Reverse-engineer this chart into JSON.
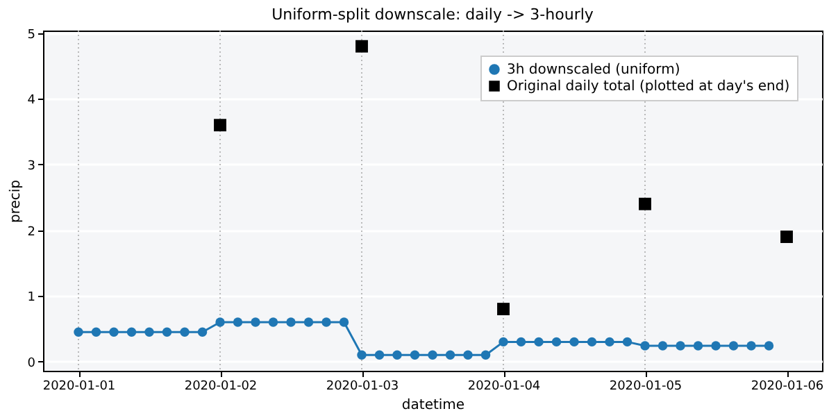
{
  "chart_data": {
    "type": "line",
    "title": "Uniform-split downscale: daily -> 3-hourly",
    "xlabel": "datetime",
    "ylabel": "precip",
    "xlim": [
      "2019-12-31T18:00",
      "2020-01-06T06:00"
    ],
    "ylim": [
      -0.14,
      5.04
    ],
    "xticks": [
      {
        "value": "2020-01-01",
        "label": "2020-01-01"
      },
      {
        "value": "2020-01-02",
        "label": "2020-01-02"
      },
      {
        "value": "2020-01-03",
        "label": "2020-01-03"
      },
      {
        "value": "2020-01-04",
        "label": "2020-01-04"
      },
      {
        "value": "2020-01-05",
        "label": "2020-01-05"
      },
      {
        "value": "2020-01-06",
        "label": "2020-01-06"
      }
    ],
    "yticks": [
      0,
      1,
      2,
      3,
      4,
      5
    ],
    "grid": "y",
    "legend": "top right",
    "ref_lines": [
      {
        "axis": "x",
        "value": "2020-01-01",
        "label": null,
        "color": "#aaaaaa",
        "line_style": "dotted"
      },
      {
        "axis": "x",
        "value": "2020-01-02",
        "label": null,
        "color": "#aaaaaa",
        "line_style": "dotted"
      },
      {
        "axis": "x",
        "value": "2020-01-03",
        "label": null,
        "color": "#aaaaaa",
        "line_style": "dotted"
      },
      {
        "axis": "x",
        "value": "2020-01-04",
        "label": null,
        "color": "#aaaaaa",
        "line_style": "dotted"
      },
      {
        "axis": "x",
        "value": "2020-01-05",
        "label": null,
        "color": "#aaaaaa",
        "line_style": "dotted"
      }
    ],
    "series": [
      {
        "name": "3h downscaled (uniform)",
        "type": "line",
        "marker": "circle",
        "line_style": "solid",
        "color": "#1f77b4",
        "x": [
          "2020-01-01T00:00",
          "2020-01-01T03:00",
          "2020-01-01T06:00",
          "2020-01-01T09:00",
          "2020-01-01T12:00",
          "2020-01-01T15:00",
          "2020-01-01T18:00",
          "2020-01-01T21:00",
          "2020-01-02T00:00",
          "2020-01-02T03:00",
          "2020-01-02T06:00",
          "2020-01-02T09:00",
          "2020-01-02T12:00",
          "2020-01-02T15:00",
          "2020-01-02T18:00",
          "2020-01-02T21:00",
          "2020-01-03T00:00",
          "2020-01-03T03:00",
          "2020-01-03T06:00",
          "2020-01-03T09:00",
          "2020-01-03T12:00",
          "2020-01-03T15:00",
          "2020-01-03T18:00",
          "2020-01-03T21:00",
          "2020-01-04T00:00",
          "2020-01-04T03:00",
          "2020-01-04T06:00",
          "2020-01-04T09:00",
          "2020-01-04T12:00",
          "2020-01-04T15:00",
          "2020-01-04T18:00",
          "2020-01-04T21:00",
          "2020-01-05T00:00",
          "2020-01-05T03:00",
          "2020-01-05T06:00",
          "2020-01-05T09:00",
          "2020-01-05T12:00",
          "2020-01-05T15:00",
          "2020-01-05T18:00",
          "2020-01-05T21:00"
        ],
        "values": [
          0.45,
          0.45,
          0.45,
          0.45,
          0.45,
          0.45,
          0.45,
          0.45,
          0.6,
          0.6,
          0.6,
          0.6,
          0.6,
          0.6,
          0.6,
          0.6,
          0.1,
          0.1,
          0.1,
          0.1,
          0.1,
          0.1,
          0.1,
          0.1,
          0.3,
          0.3,
          0.3,
          0.3,
          0.3,
          0.3,
          0.3,
          0.3,
          0.24,
          0.24,
          0.24,
          0.24,
          0.24,
          0.24,
          0.24,
          0.24
        ]
      },
      {
        "name": "Original daily total (plotted at day's end)",
        "type": "scatter",
        "marker": "square",
        "color": "#000000",
        "x": [
          "2020-01-02",
          "2020-01-03",
          "2020-01-04",
          "2020-01-05",
          "2020-01-06"
        ],
        "values": [
          3.6,
          4.8,
          0.8,
          2.4,
          1.9
        ]
      }
    ]
  }
}
